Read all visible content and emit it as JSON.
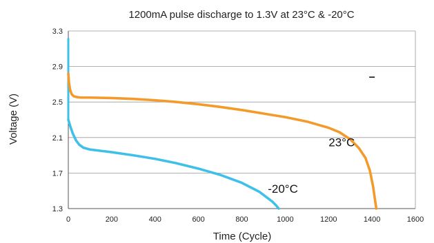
{
  "chart_data": {
    "type": "line",
    "title": "1200mA pulse discharge to 1.3V at 23°C & -20°C",
    "xlabel": "Time (Cycle)",
    "ylabel": "Voltage (V)",
    "xlim": [
      0,
      1600
    ],
    "ylim": [
      1.3,
      3.3
    ],
    "x_ticks": [
      "0",
      "200",
      "400",
      "600",
      "800",
      "1000",
      "1200",
      "1400",
      "1600"
    ],
    "y_ticks": [
      "1.3",
      "1.7",
      "2.1",
      "2.5",
      "2.9",
      "3.3"
    ],
    "grid": "horizontal",
    "series": [
      {
        "name": "23°C",
        "color": "#f39a2a",
        "label_at": [
          1200,
          2.0
        ],
        "points": [
          [
            0,
            2.82
          ],
          [
            3,
            2.72
          ],
          [
            8,
            2.64
          ],
          [
            15,
            2.59
          ],
          [
            25,
            2.565
          ],
          [
            40,
            2.555
          ],
          [
            60,
            2.55
          ],
          [
            100,
            2.55
          ],
          [
            200,
            2.545
          ],
          [
            300,
            2.535
          ],
          [
            400,
            2.52
          ],
          [
            500,
            2.5
          ],
          [
            600,
            2.475
          ],
          [
            700,
            2.445
          ],
          [
            800,
            2.41
          ],
          [
            900,
            2.37
          ],
          [
            1000,
            2.33
          ],
          [
            1100,
            2.28
          ],
          [
            1200,
            2.21
          ],
          [
            1250,
            2.16
          ],
          [
            1300,
            2.08
          ],
          [
            1340,
            1.98
          ],
          [
            1370,
            1.87
          ],
          [
            1390,
            1.73
          ],
          [
            1405,
            1.55
          ],
          [
            1415,
            1.38
          ],
          [
            1420,
            1.3
          ]
        ]
      },
      {
        "name": "-20°C",
        "color": "#3fc0e8",
        "label_at": [
          920,
          1.48
        ],
        "points": [
          [
            0,
            2.3
          ],
          [
            10,
            2.22
          ],
          [
            20,
            2.15
          ],
          [
            35,
            2.07
          ],
          [
            50,
            2.02
          ],
          [
            70,
            1.985
          ],
          [
            100,
            1.965
          ],
          [
            150,
            1.95
          ],
          [
            200,
            1.935
          ],
          [
            300,
            1.9
          ],
          [
            400,
            1.86
          ],
          [
            500,
            1.81
          ],
          [
            600,
            1.75
          ],
          [
            700,
            1.68
          ],
          [
            800,
            1.59
          ],
          [
            880,
            1.49
          ],
          [
            940,
            1.38
          ],
          [
            960,
            1.33
          ],
          [
            970,
            1.3
          ]
        ]
      }
    ],
    "spike": {
      "color": "#3fc0e8",
      "points": [
        [
          0,
          3.22
        ],
        [
          0,
          2.3
        ]
      ]
    },
    "mark_point": [
      1400,
      2.78
    ]
  }
}
